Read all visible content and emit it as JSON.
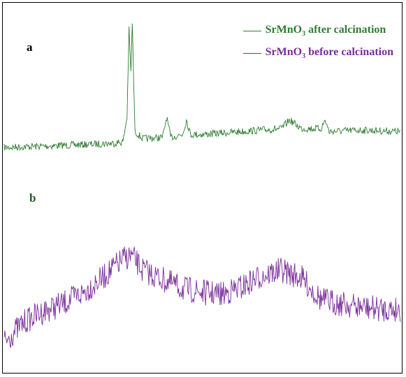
{
  "chart_data": {
    "type": "line",
    "title": "",
    "xlabel": "",
    "ylabel": "",
    "grid": false,
    "legend_position": "top-right",
    "x_range": [
      0,
      100
    ],
    "y_range": [
      0,
      100
    ],
    "panels": [
      {
        "label": "a",
        "series_index": 0
      },
      {
        "label": "b",
        "series_index": 1
      }
    ],
    "series": [
      {
        "name_prefix": "SrMnO",
        "name_sub": "3",
        "name_suffix": " after calcination",
        "color": "#2e7d32",
        "trend": [
          [
            0,
            91
          ],
          [
            10,
            90
          ],
          [
            20,
            89
          ],
          [
            28,
            88
          ],
          [
            30,
            87
          ],
          [
            31,
            70
          ],
          [
            31.5,
            10
          ],
          [
            32,
            40
          ],
          [
            32.3,
            3
          ],
          [
            33,
            80
          ],
          [
            35,
            85
          ],
          [
            40,
            84
          ],
          [
            41,
            70
          ],
          [
            42,
            84
          ],
          [
            45,
            82
          ],
          [
            46,
            72
          ],
          [
            47,
            82
          ],
          [
            50,
            82
          ],
          [
            60,
            80
          ],
          [
            70,
            78
          ],
          [
            72,
            72
          ],
          [
            75,
            78
          ],
          [
            80,
            78
          ],
          [
            81,
            72
          ],
          [
            82,
            80
          ],
          [
            90,
            79
          ],
          [
            100,
            80
          ]
        ],
        "noise": 5
      },
      {
        "name_prefix": "SrMnO",
        "name_sub": "3",
        "name_suffix": " before calcination",
        "color": "#7b2d9b",
        "trend": [
          [
            0,
            93
          ],
          [
            5,
            82
          ],
          [
            10,
            76
          ],
          [
            15,
            72
          ],
          [
            20,
            66
          ],
          [
            25,
            58
          ],
          [
            30,
            48
          ],
          [
            32,
            46
          ],
          [
            35,
            54
          ],
          [
            40,
            59
          ],
          [
            45,
            64
          ],
          [
            50,
            66
          ],
          [
            55,
            67
          ],
          [
            60,
            63
          ],
          [
            65,
            57
          ],
          [
            70,
            54
          ],
          [
            75,
            58
          ],
          [
            80,
            70
          ],
          [
            85,
            72
          ],
          [
            90,
            74
          ],
          [
            95,
            75
          ],
          [
            100,
            75
          ]
        ],
        "noise": 14
      }
    ]
  }
}
